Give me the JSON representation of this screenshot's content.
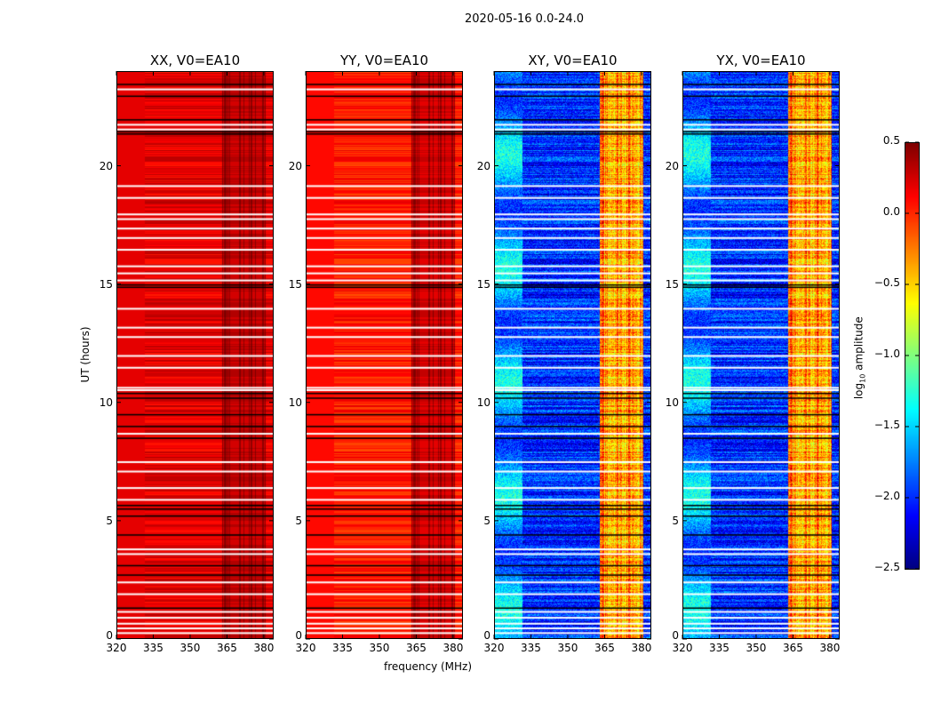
{
  "suptitle": "2020-05-16 0.0-24.0",
  "chart_data": {
    "type": "heatmap",
    "xlabel": "frequency (MHz)",
    "ylabel": "UT (hours)",
    "xlim": [
      320,
      384
    ],
    "ylim": [
      0,
      24
    ],
    "xticks": [
      320,
      335,
      350,
      365,
      380
    ],
    "yticks": [
      0,
      5,
      10,
      15,
      20
    ],
    "colorbar": {
      "label": "log10 amplitude",
      "label_main": "log",
      "label_sub": "10",
      "label_rest": " amplitude",
      "range": [
        -2.5,
        0.5
      ],
      "ticks": [
        "0.5",
        "0.0",
        "−0.5",
        "−1.0",
        "−1.5",
        "−2.0",
        "−2.5"
      ],
      "tick_values": [
        0.5,
        0.0,
        -0.5,
        -1.0,
        -1.5,
        -2.0,
        -2.5
      ],
      "colormap": "jet"
    },
    "panels": [
      {
        "title": "XX, V0=EA10",
        "base_level": 0.2,
        "rfi_level": 0.35,
        "low_freq_level": 0.2
      },
      {
        "title": "YY, V0=EA10",
        "base_level": 0.05,
        "rfi_level": 0.3,
        "low_freq_level": 0.1
      },
      {
        "title": "XY, V0=EA10",
        "base_level": -2.0,
        "rfi_level": -0.3,
        "low_freq_level": -1.3
      },
      {
        "title": "YX, V0=EA10",
        "base_level": -2.0,
        "rfi_level": -0.3,
        "low_freq_level": -1.3
      }
    ],
    "rfi_band_mhz": [
      363,
      381
    ],
    "flagged_hours_white": [
      0.25,
      0.45,
      0.65,
      0.9,
      1.15,
      1.9,
      2.4,
      3.6,
      3.8,
      5.9,
      6.4,
      7.1,
      7.5,
      8.7,
      10.55,
      10.65,
      11.5,
      12.0,
      12.8,
      13.2,
      14.0,
      15.2,
      15.5,
      15.8,
      16.5,
      17.0,
      17.4,
      17.8,
      18.0,
      18.7,
      19.2,
      21.6,
      21.8,
      23.3
    ],
    "flagged_hours_black": [
      1.3,
      2.7,
      3.1,
      4.4,
      5.2,
      5.5,
      5.65,
      8.5,
      9.0,
      9.5,
      10.2,
      10.4,
      14.9,
      15.0,
      21.4,
      21.5,
      22.0,
      23.0,
      23.5
    ]
  }
}
